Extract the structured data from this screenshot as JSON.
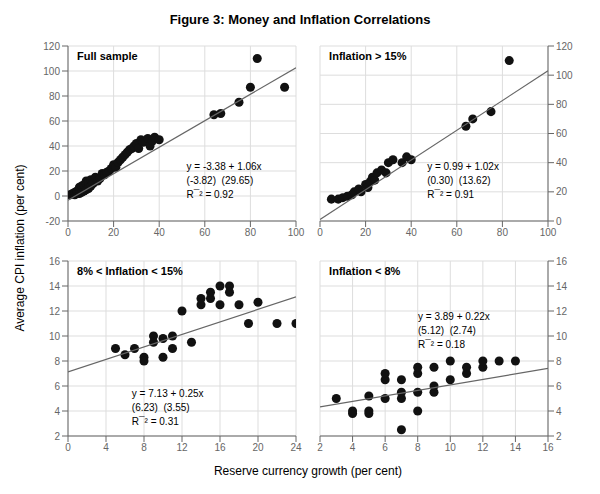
{
  "title": "Figure 3: Money and Inflation Correlations",
  "xlabel": "Reserve currency growth (per cent)",
  "ylabel": "Average CPI inflation (per cent)",
  "chart_data": [
    {
      "type": "scatter",
      "title": "Full sample",
      "annotations": [
        "y = -3.38 + 1.06x",
        "(-3.82)  (29.65)",
        "R¯² = 0.92"
      ],
      "xlim": [
        0,
        100
      ],
      "ylim": [
        -20,
        120
      ],
      "xticks": [
        0,
        20,
        40,
        60,
        80,
        100
      ],
      "yticks": [
        -20,
        0,
        20,
        40,
        60,
        80,
        100,
        120
      ],
      "grid": true,
      "series": [
        {
          "type": "scatter",
          "marker": "circle",
          "color": "#111111",
          "x": [
            1,
            2,
            3,
            3,
            4,
            4,
            5,
            5,
            5,
            6,
            6,
            6,
            7,
            7,
            8,
            8,
            8,
            9,
            9,
            9,
            10,
            10,
            11,
            12,
            13,
            14,
            15,
            16,
            17,
            18,
            19,
            20,
            21,
            22,
            23,
            24,
            25,
            26,
            27,
            28,
            29,
            30,
            31,
            32,
            33,
            35,
            36,
            37,
            38,
            40,
            64,
            67,
            75,
            80,
            83,
            95
          ],
          "values": [
            1,
            2,
            1,
            3,
            2,
            4,
            2,
            5,
            7,
            3,
            6,
            8,
            4,
            9,
            5,
            10,
            12,
            6,
            7,
            11,
            8,
            13,
            10,
            15,
            12,
            14,
            18,
            17,
            19,
            20,
            22,
            25,
            23,
            27,
            29,
            31,
            33,
            35,
            37,
            38,
            40,
            42,
            38,
            45,
            43,
            46,
            40,
            44,
            47,
            45,
            65,
            66,
            75,
            87,
            110,
            87
          ]
        },
        {
          "type": "line",
          "line_style": "solid",
          "color": "#666666",
          "x": [
            0,
            100
          ],
          "values": [
            -3.38,
            102.62
          ]
        }
      ]
    },
    {
      "type": "scatter",
      "title": "Inflation > 15%",
      "annotations": [
        "y = 0.99 + 1.02x",
        "(0.30)  (13.62)",
        "R¯² = 0.91"
      ],
      "xlim": [
        0,
        100
      ],
      "ylim": [
        0,
        120
      ],
      "xticks": [
        0,
        20,
        40,
        60,
        80,
        100
      ],
      "yticks": [
        0,
        20,
        40,
        60,
        80,
        100,
        120
      ],
      "grid": true,
      "series": [
        {
          "type": "scatter",
          "marker": "circle",
          "color": "#111111",
          "x": [
            5,
            8,
            10,
            12,
            14,
            15,
            17,
            18,
            20,
            21,
            22,
            23,
            24,
            25,
            27,
            29,
            30,
            32,
            36,
            38,
            40,
            64,
            67,
            75,
            83
          ],
          "values": [
            15,
            15,
            16,
            17,
            18,
            20,
            22,
            20,
            25,
            23,
            27,
            30,
            28,
            33,
            35,
            33,
            40,
            42,
            40,
            44,
            42,
            65,
            70,
            75,
            110
          ]
        },
        {
          "type": "line",
          "line_style": "solid",
          "color": "#666666",
          "x": [
            0,
            100
          ],
          "values": [
            0.99,
            102.99
          ]
        }
      ]
    },
    {
      "type": "scatter",
      "title": "8% < Inflation < 15%",
      "annotations": [
        "y = 7.13 + 0.25x",
        "(6.23)  (3.55)",
        "R¯² = 0.31"
      ],
      "xlim": [
        0,
        24
      ],
      "ylim": [
        2,
        16
      ],
      "xticks": [
        0,
        4,
        8,
        12,
        16,
        20,
        24
      ],
      "yticks": [
        2,
        4,
        6,
        8,
        10,
        12,
        14,
        16
      ],
      "grid": true,
      "series": [
        {
          "type": "scatter",
          "marker": "circle",
          "color": "#111111",
          "x": [
            5,
            6,
            7,
            8,
            8,
            9,
            9,
            10,
            10,
            11,
            11,
            12,
            13,
            14,
            14,
            15,
            15,
            16,
            16,
            17,
            17,
            18,
            19,
            20,
            22,
            24
          ],
          "values": [
            9,
            8.5,
            9,
            8.3,
            8,
            9.5,
            10,
            9.8,
            8.3,
            10,
            9,
            12,
            9.5,
            12.5,
            13,
            13,
            13.5,
            14,
            12.5,
            13.5,
            14,
            12.5,
            11,
            12.7,
            11,
            11
          ]
        },
        {
          "type": "line",
          "line_style": "solid",
          "color": "#666666",
          "x": [
            0,
            24
          ],
          "values": [
            7.13,
            13.13
          ]
        }
      ]
    },
    {
      "type": "scatter",
      "title": "Inflation < 8%",
      "annotations": [
        "y = 3.89 + 0.22x",
        "(5.12)  (2.74)",
        "R¯² = 0.18"
      ],
      "xlim": [
        2,
        16
      ],
      "ylim": [
        2,
        16
      ],
      "xticks": [
        2,
        4,
        6,
        8,
        10,
        12,
        14,
        16
      ],
      "yticks": [
        2,
        4,
        6,
        8,
        10,
        12,
        14,
        16
      ],
      "grid": true,
      "series": [
        {
          "type": "scatter",
          "marker": "circle",
          "color": "#111111",
          "x": [
            3,
            4,
            4,
            5,
            5,
            5,
            6,
            6,
            6,
            7,
            7,
            7,
            7,
            8,
            8,
            8,
            8,
            9,
            9,
            9,
            10,
            10,
            11,
            11,
            12,
            12,
            13,
            14
          ],
          "values": [
            5,
            4,
            3.8,
            4,
            3.8,
            5.2,
            5,
            6.5,
            7,
            5,
            6.5,
            5.5,
            2.5,
            4,
            5.5,
            7,
            7.5,
            6,
            5.5,
            7.5,
            6.5,
            8,
            7.5,
            7,
            7.5,
            8,
            8,
            8
          ]
        },
        {
          "type": "line",
          "line_style": "solid",
          "color": "#666666",
          "x": [
            2,
            16
          ],
          "values": [
            4.33,
            7.41
          ]
        }
      ]
    }
  ]
}
